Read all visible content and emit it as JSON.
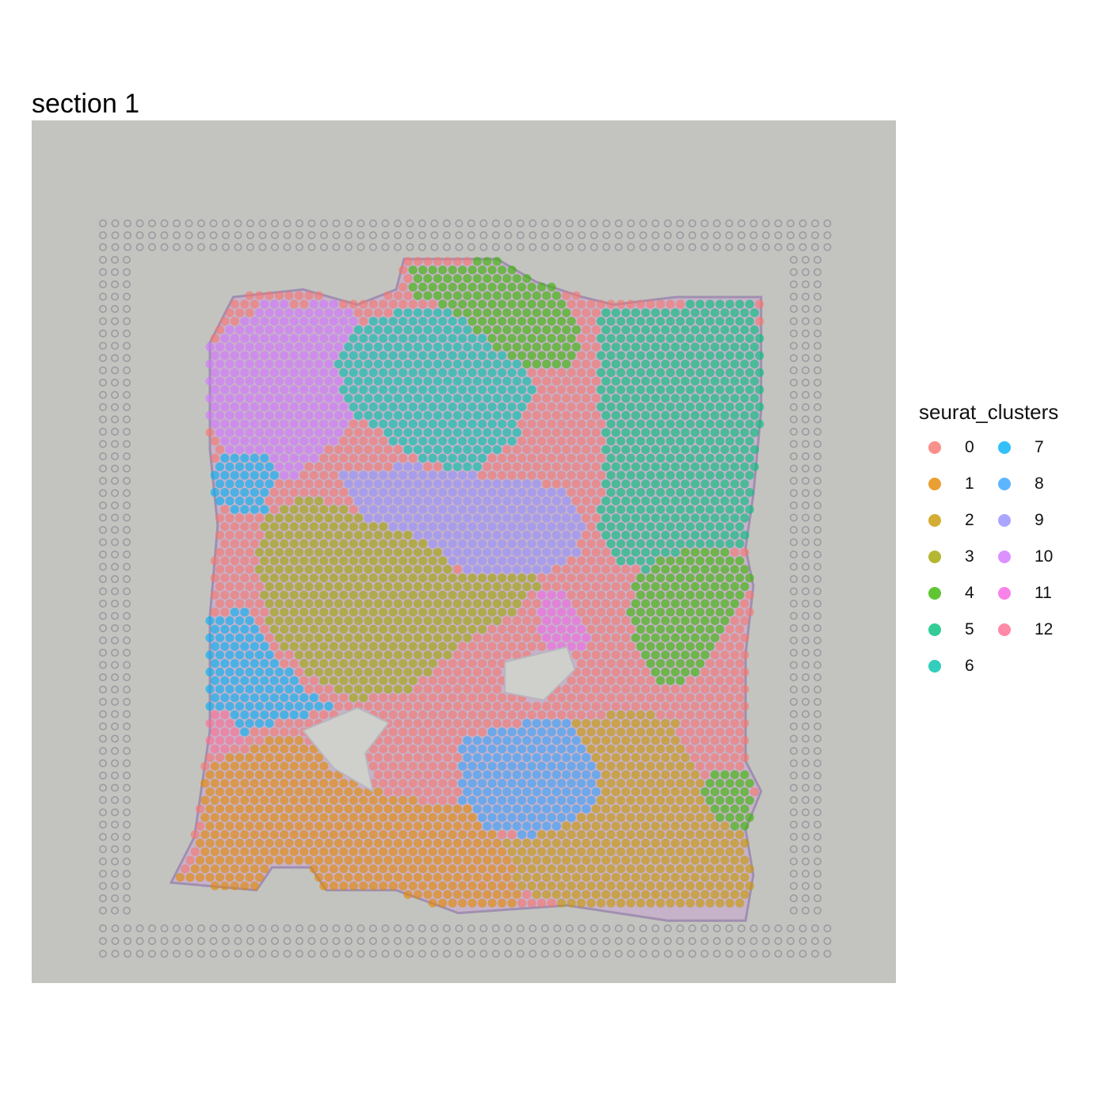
{
  "title": "section 1",
  "chart_data": {
    "type": "scatter",
    "title": "section 1",
    "xlabel": "",
    "ylabel": "",
    "background": "tissue-image",
    "grid": false,
    "legend_placement": "right",
    "legend": {
      "title": "seurat_clusters",
      "columns": 2,
      "entries": [
        {
          "label": "0",
          "color": "#F8766D"
        },
        {
          "label": "1",
          "color": "#E58700"
        },
        {
          "label": "2",
          "color": "#C99800"
        },
        {
          "label": "3",
          "color": "#A3A500"
        },
        {
          "label": "4",
          "color": "#39B600"
        },
        {
          "label": "5",
          "color": "#00BF7D"
        },
        {
          "label": "6",
          "color": "#00C1AA"
        },
        {
          "label": "7",
          "color": "#00B0F6"
        },
        {
          "label": "8",
          "color": "#35A2FF"
        },
        {
          "label": "9",
          "color": "#9590FF"
        },
        {
          "label": "10",
          "color": "#D376FF"
        },
        {
          "label": "11",
          "color": "#F564E3"
        },
        {
          "label": "12",
          "color": "#FF6C91"
        }
      ]
    },
    "regions": [
      {
        "cluster": "10",
        "polygon": [
          [
            0.0,
            0.6
          ],
          [
            0.8,
            0.0
          ],
          [
            1.2,
            0.2
          ],
          [
            1.4,
            0.0
          ],
          [
            1.9,
            0.2
          ],
          [
            2.0,
            0.4
          ],
          [
            1.9,
            1.0
          ],
          [
            1.8,
            1.7
          ],
          [
            1.4,
            2.1
          ],
          [
            1.1,
            2.4
          ],
          [
            0.6,
            2.4
          ],
          [
            0.3,
            2.1
          ],
          [
            0.0,
            1.6
          ]
        ]
      },
      {
        "cluster": "6",
        "polygon": [
          [
            1.8,
            0.4
          ],
          [
            2.6,
            0.1
          ],
          [
            3.2,
            0.1
          ],
          [
            3.6,
            0.2
          ],
          [
            3.8,
            0.6
          ],
          [
            4.1,
            0.9
          ],
          [
            4.2,
            1.3
          ],
          [
            3.9,
            1.9
          ],
          [
            3.4,
            2.3
          ],
          [
            2.8,
            2.2
          ],
          [
            2.2,
            1.8
          ],
          [
            1.8,
            1.5
          ],
          [
            1.6,
            0.9
          ]
        ]
      },
      {
        "cluster": "4",
        "polygon": [
          [
            2.6,
            -0.4
          ],
          [
            3.7,
            -0.5
          ],
          [
            4.5,
            -0.2
          ],
          [
            4.8,
            0.4
          ],
          [
            4.7,
            0.9
          ],
          [
            4.3,
            1.0
          ],
          [
            3.8,
            0.8
          ],
          [
            3.4,
            0.4
          ],
          [
            3.0,
            0.1
          ],
          [
            2.6,
            0.0
          ]
        ]
      },
      {
        "cluster": "5",
        "polygon": [
          [
            5.0,
            0.1
          ],
          [
            6.1,
            0.1
          ],
          [
            7.0,
            0.0
          ],
          [
            7.1,
            0.6
          ],
          [
            7.1,
            2.7
          ],
          [
            6.9,
            3.3
          ],
          [
            6.6,
            3.4
          ],
          [
            6.1,
            3.4
          ],
          [
            5.6,
            3.6
          ],
          [
            5.2,
            3.5
          ],
          [
            5.0,
            3.1
          ],
          [
            5.1,
            2.2
          ],
          [
            5.0,
            1.2
          ]
        ]
      },
      {
        "cluster": "9",
        "polygon": [
          [
            1.7,
            2.3
          ],
          [
            2.6,
            2.2
          ],
          [
            3.8,
            2.4
          ],
          [
            4.6,
            2.5
          ],
          [
            4.9,
            3.0
          ],
          [
            4.7,
            3.4
          ],
          [
            4.2,
            3.7
          ],
          [
            3.6,
            3.8
          ],
          [
            3.1,
            3.5
          ],
          [
            2.6,
            3.2
          ],
          [
            2.0,
            3.0
          ],
          [
            1.8,
            2.7
          ]
        ]
      },
      {
        "cluster": "3",
        "polygon": [
          [
            0.7,
            2.9
          ],
          [
            1.3,
            2.6
          ],
          [
            2.0,
            2.9
          ],
          [
            2.8,
            3.2
          ],
          [
            3.2,
            3.6
          ],
          [
            3.8,
            3.6
          ],
          [
            4.3,
            3.7
          ],
          [
            3.9,
            4.2
          ],
          [
            3.2,
            4.6
          ],
          [
            2.5,
            5.2
          ],
          [
            1.8,
            5.3
          ],
          [
            1.2,
            4.9
          ],
          [
            0.8,
            4.4
          ],
          [
            0.6,
            3.6
          ]
        ]
      },
      {
        "cluster": "4",
        "polygon": [
          [
            5.8,
            3.4
          ],
          [
            6.5,
            3.3
          ],
          [
            7.0,
            3.5
          ],
          [
            6.9,
            4.0
          ],
          [
            6.5,
            4.5
          ],
          [
            6.3,
            5.0
          ],
          [
            5.8,
            5.1
          ],
          [
            5.5,
            4.7
          ],
          [
            5.4,
            4.1
          ],
          [
            5.5,
            3.7
          ]
        ]
      },
      {
        "cluster": "8",
        "polygon": [
          [
            3.3,
            5.8
          ],
          [
            4.0,
            5.6
          ],
          [
            4.9,
            5.6
          ],
          [
            5.0,
            6.2
          ],
          [
            5.0,
            6.7
          ],
          [
            4.6,
            7.0
          ],
          [
            4.1,
            7.1
          ],
          [
            3.6,
            7.0
          ],
          [
            3.2,
            6.6
          ],
          [
            3.2,
            6.1
          ]
        ]
      },
      {
        "cluster": "2",
        "polygon": [
          [
            4.7,
            5.6
          ],
          [
            5.5,
            5.4
          ],
          [
            6.0,
            5.6
          ],
          [
            6.3,
            6.3
          ],
          [
            6.6,
            6.6
          ],
          [
            7.0,
            7.0
          ],
          [
            7.1,
            8.1
          ],
          [
            6.4,
            8.2
          ],
          [
            5.5,
            8.1
          ],
          [
            4.6,
            8.0
          ],
          [
            3.9,
            7.8
          ],
          [
            3.7,
            7.2
          ],
          [
            4.5,
            7.0
          ],
          [
            5.0,
            6.7
          ],
          [
            5.0,
            6.2
          ]
        ]
      },
      {
        "cluster": "1",
        "polygon": [
          [
            -0.1,
            6.2
          ],
          [
            0.6,
            5.9
          ],
          [
            1.0,
            5.7
          ],
          [
            1.6,
            6.0
          ],
          [
            1.9,
            6.4
          ],
          [
            2.5,
            6.6
          ],
          [
            3.3,
            6.7
          ],
          [
            3.8,
            7.2
          ],
          [
            4.0,
            7.9
          ],
          [
            3.8,
            8.2
          ],
          [
            3.0,
            8.1
          ],
          [
            2.2,
            7.9
          ],
          [
            1.5,
            7.8
          ],
          [
            1.3,
            7.6
          ],
          [
            0.8,
            7.6
          ],
          [
            0.6,
            7.8
          ],
          [
            -0.5,
            7.7
          ],
          [
            -0.2,
            7.4
          ],
          [
            -0.1,
            7.0
          ]
        ]
      },
      {
        "cluster": "4",
        "polygon": [
          [
            6.4,
            6.3
          ],
          [
            6.9,
            6.2
          ],
          [
            7.1,
            6.8
          ],
          [
            6.9,
            7.1
          ],
          [
            6.6,
            6.9
          ],
          [
            6.3,
            6.6
          ]
        ]
      },
      {
        "cluster": "7",
        "polygon": [
          [
            0.1,
            2.1
          ],
          [
            0.7,
            2.0
          ],
          [
            0.9,
            2.4
          ],
          [
            0.7,
            2.8
          ],
          [
            0.3,
            2.9
          ],
          [
            0.0,
            2.6
          ]
        ]
      },
      {
        "cluster": "7",
        "polygon": [
          [
            0.0,
            4.2
          ],
          [
            0.5,
            4.1
          ],
          [
            0.9,
            4.8
          ],
          [
            1.3,
            5.2
          ],
          [
            1.6,
            5.4
          ],
          [
            0.8,
            5.6
          ],
          [
            0.4,
            5.8
          ],
          [
            0.0,
            5.5
          ]
        ]
      },
      {
        "cluster": "12",
        "polygon": [
          [
            0.0,
            5.5
          ],
          [
            0.3,
            5.4
          ],
          [
            0.4,
            5.9
          ],
          [
            0.0,
            6.0
          ]
        ]
      },
      {
        "cluster": "11",
        "polygon": [
          [
            4.2,
            3.9
          ],
          [
            4.6,
            3.9
          ],
          [
            4.9,
            4.5
          ],
          [
            4.6,
            4.8
          ],
          [
            4.3,
            4.6
          ]
        ]
      }
    ],
    "holes": [
      {
        "polygon": [
          [
            1.2,
            5.7
          ],
          [
            1.9,
            5.4
          ],
          [
            2.3,
            5.6
          ],
          [
            2.0,
            6.0
          ],
          [
            2.1,
            6.5
          ],
          [
            1.6,
            6.2
          ]
        ]
      },
      {
        "polygon": [
          [
            3.8,
            4.8
          ],
          [
            4.6,
            4.6
          ],
          [
            4.7,
            4.9
          ],
          [
            4.3,
            5.3
          ],
          [
            3.8,
            5.2
          ]
        ]
      }
    ]
  }
}
